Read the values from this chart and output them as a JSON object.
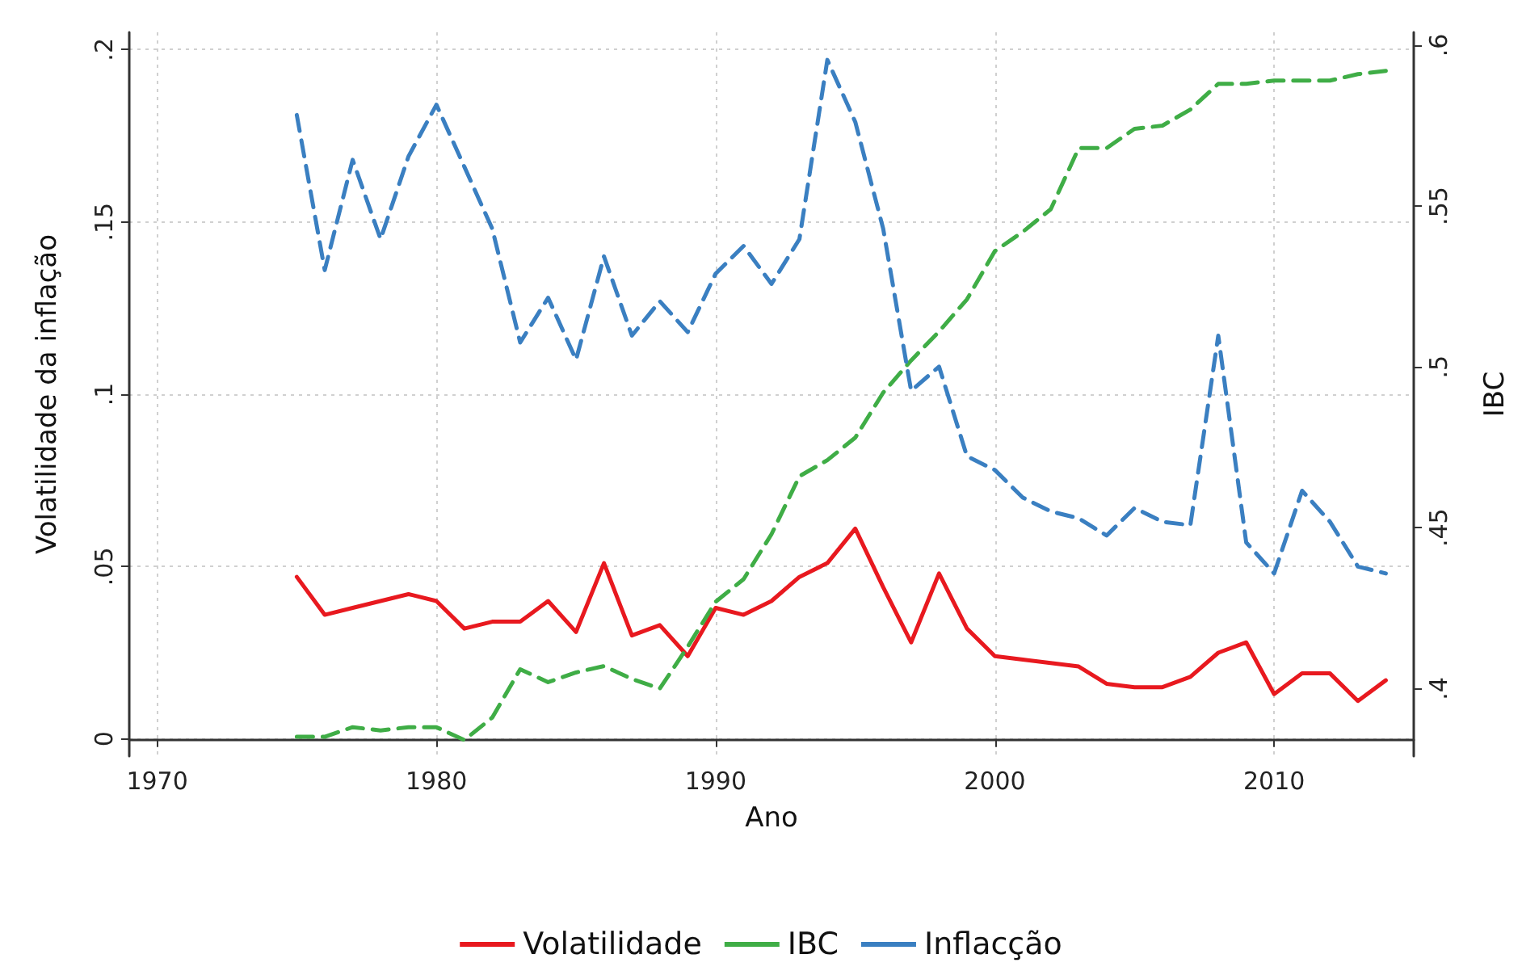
{
  "chart_data": {
    "type": "line",
    "xlabel": "Ano",
    "ylabel": "Volatilidade da inflação",
    "y2label": "IBC",
    "x": [
      1975,
      1976,
      1977,
      1978,
      1979,
      1980,
      1981,
      1982,
      1983,
      1984,
      1985,
      1986,
      1987,
      1988,
      1989,
      1990,
      1991,
      1992,
      1993,
      1994,
      1995,
      1996,
      1997,
      1998,
      1999,
      2000,
      2001,
      2002,
      2003,
      2004,
      2005,
      2006,
      2007,
      2008,
      2009,
      2010,
      2011,
      2012,
      2013,
      2014
    ],
    "series": [
      {
        "name": "Volatilidade",
        "color": "#e8191f",
        "line_style": "solid",
        "values": [
          0.047,
          0.036,
          0.038,
          0.04,
          0.042,
          0.04,
          0.032,
          0.034,
          0.034,
          0.04,
          0.031,
          0.051,
          0.03,
          0.033,
          0.024,
          0.038,
          0.036,
          0.04,
          0.047,
          0.051,
          0.061,
          0.044,
          0.028,
          0.048,
          0.032,
          0.024,
          0.023,
          0.022,
          0.021,
          0.016,
          0.015,
          0.015,
          0.018,
          0.025,
          0.028,
          0.013,
          0.019,
          0.019,
          0.011,
          0.017
        ]
      },
      {
        "name": "IBC",
        "color": "#3fad46",
        "line_style": "dashed",
        "axis": "y2",
        "values": [
          0.385,
          0.385,
          0.388,
          0.387,
          0.388,
          0.388,
          0.384,
          0.391,
          0.406,
          0.402,
          0.405,
          0.407,
          0.403,
          0.4,
          0.413,
          0.427,
          0.434,
          0.448,
          0.466,
          0.471,
          0.478,
          0.492,
          0.502,
          0.511,
          0.521,
          0.536,
          0.542,
          0.549,
          0.568,
          0.568,
          0.574,
          0.575,
          0.58,
          0.588,
          0.588,
          0.589,
          0.589,
          0.589,
          0.591,
          0.592
        ]
      },
      {
        "name": "Inflacção",
        "color": "#3a7fc1",
        "line_style": "dashed",
        "values": [
          0.181,
          0.136,
          0.168,
          0.145,
          0.169,
          0.184,
          0.166,
          0.148,
          0.115,
          0.128,
          0.11,
          0.14,
          0.117,
          0.127,
          0.118,
          0.135,
          0.143,
          0.132,
          0.145,
          0.197,
          0.179,
          0.148,
          0.101,
          0.108,
          0.082,
          0.078,
          0.07,
          0.066,
          0.064,
          0.059,
          0.067,
          0.063,
          0.062,
          0.117,
          0.057,
          0.048,
          0.072,
          0.063,
          0.05,
          0.048
        ]
      }
    ],
    "xlim": [
      1969,
      2015
    ],
    "xticks": [
      1970,
      1980,
      1990,
      2000,
      2010
    ],
    "ylim": [
      -0.005,
      0.205
    ],
    "yticks": [
      0,
      {
        "value": 0.05,
        "label": ".05"
      },
      {
        "value": 0.1,
        "label": ".1"
      },
      {
        "value": 0.15,
        "label": ".15"
      },
      {
        "value": 0.2,
        "label": ".2"
      }
    ],
    "y2lim": [
      0.379,
      0.604
    ],
    "y2ticks": [
      {
        "value": 0.4,
        "label": ".4"
      },
      {
        "value": 0.45,
        "label": ".45"
      },
      {
        "value": 0.5,
        "label": ".5"
      },
      {
        "value": 0.55,
        "label": ".55"
      },
      {
        "value": 0.6,
        "label": ".6"
      }
    ],
    "grid": true,
    "legend": "bottom",
    "marker": "none"
  }
}
